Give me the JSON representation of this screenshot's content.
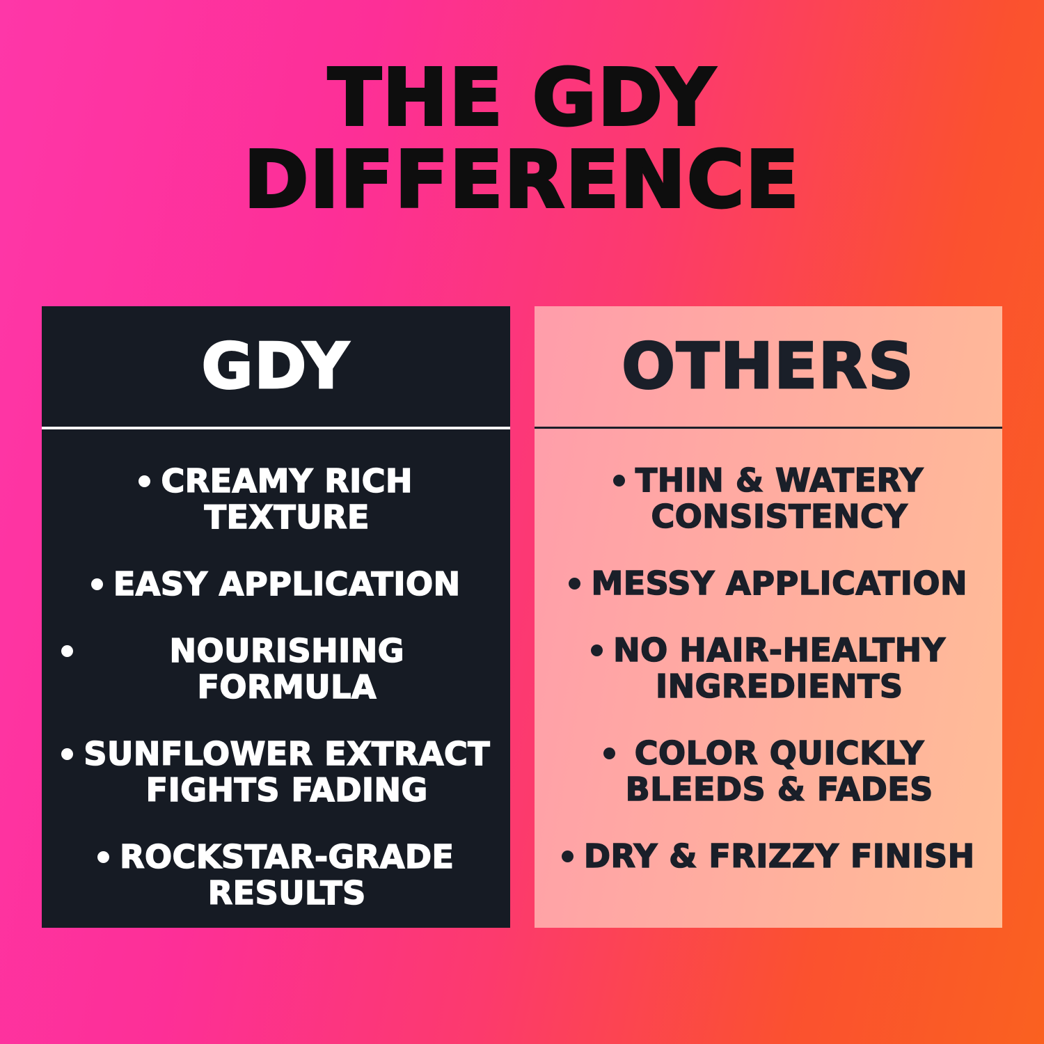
{
  "title": "THE GDY\nDIFFERENCE",
  "icons": {
    "bullet_dot": "•"
  },
  "colors": {
    "background_gradient_left": "#fe37a8",
    "background_gradient_mid": "#fc3a6d",
    "background_gradient_right": "#fa6120",
    "dark_card_background": "#161b24",
    "light_card_background_left": "#ff9dab",
    "light_card_background_right": "#ffbd97",
    "title_text": "#0e0e0e",
    "dark_card_text": "#ffffff",
    "light_card_text": "#1a1f29"
  },
  "comparison": {
    "columns": [
      {
        "header": "GDY",
        "items": [
          "CREAMY RICH\nTEXTURE",
          "EASY APPLICATION",
          "NOURISHING FORMULA",
          "SUNFLOWER EXTRACT\nFIGHTS FADING",
          "ROCKSTAR-GRADE\nRESULTS"
        ]
      },
      {
        "header": "OTHERS",
        "items": [
          "THIN & WATERY\nCONSISTENCY",
          "MESSY APPLICATION",
          "NO HAIR-HEALTHY\nINGREDIENTS",
          "COLOR QUICKLY\nBLEEDS & FADES",
          "DRY & FRIZZY FINISH"
        ]
      }
    ]
  }
}
